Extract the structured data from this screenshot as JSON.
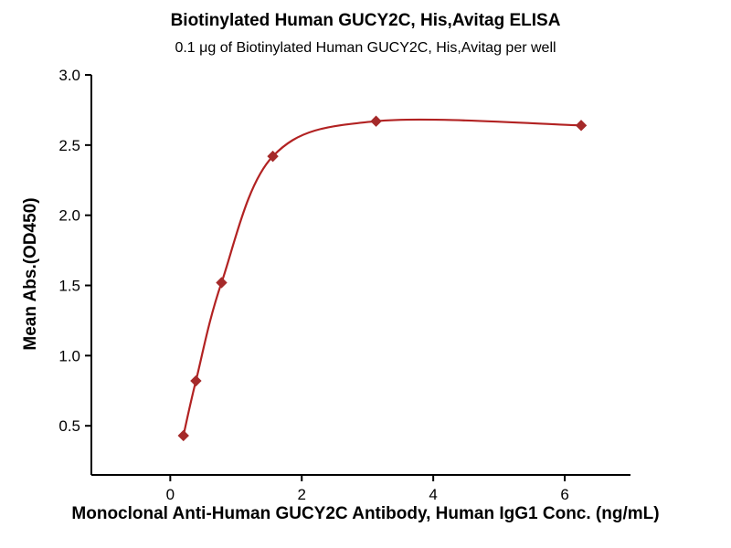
{
  "chart_data": {
    "type": "scatter",
    "title": "Biotinylated Human GUCY2C, His,Avitag ELISA",
    "subtitle": "0.1 μg of Biotinylated Human GUCY2C, His,Avitag per well",
    "xlabel": "Monoclonal Anti-Human GUCY2C Antibody, Human IgG1 Conc. (ng/mL)",
    "ylabel": "Mean Abs.(OD450)",
    "x": [
      0.2,
      0.39,
      0.78,
      1.56,
      3.13,
      6.25
    ],
    "y": [
      0.43,
      0.82,
      1.52,
      2.42,
      2.67,
      2.64
    ],
    "xticks": [
      0,
      2,
      4,
      6
    ],
    "yticks": [
      0.5,
      1.0,
      1.5,
      2.0,
      2.5,
      3.0
    ],
    "xlim": [
      -1.2,
      7.0
    ],
    "ylim": [
      0.15,
      3.0
    ],
    "marker": "diamond",
    "curve": "smooth-fit-line",
    "grid": false,
    "legend": "none",
    "colors": {
      "series_line": "#B22222",
      "series_marker": "#A52A2A",
      "axis": "#000000",
      "text": "#000000",
      "background": "#ffffff"
    }
  }
}
